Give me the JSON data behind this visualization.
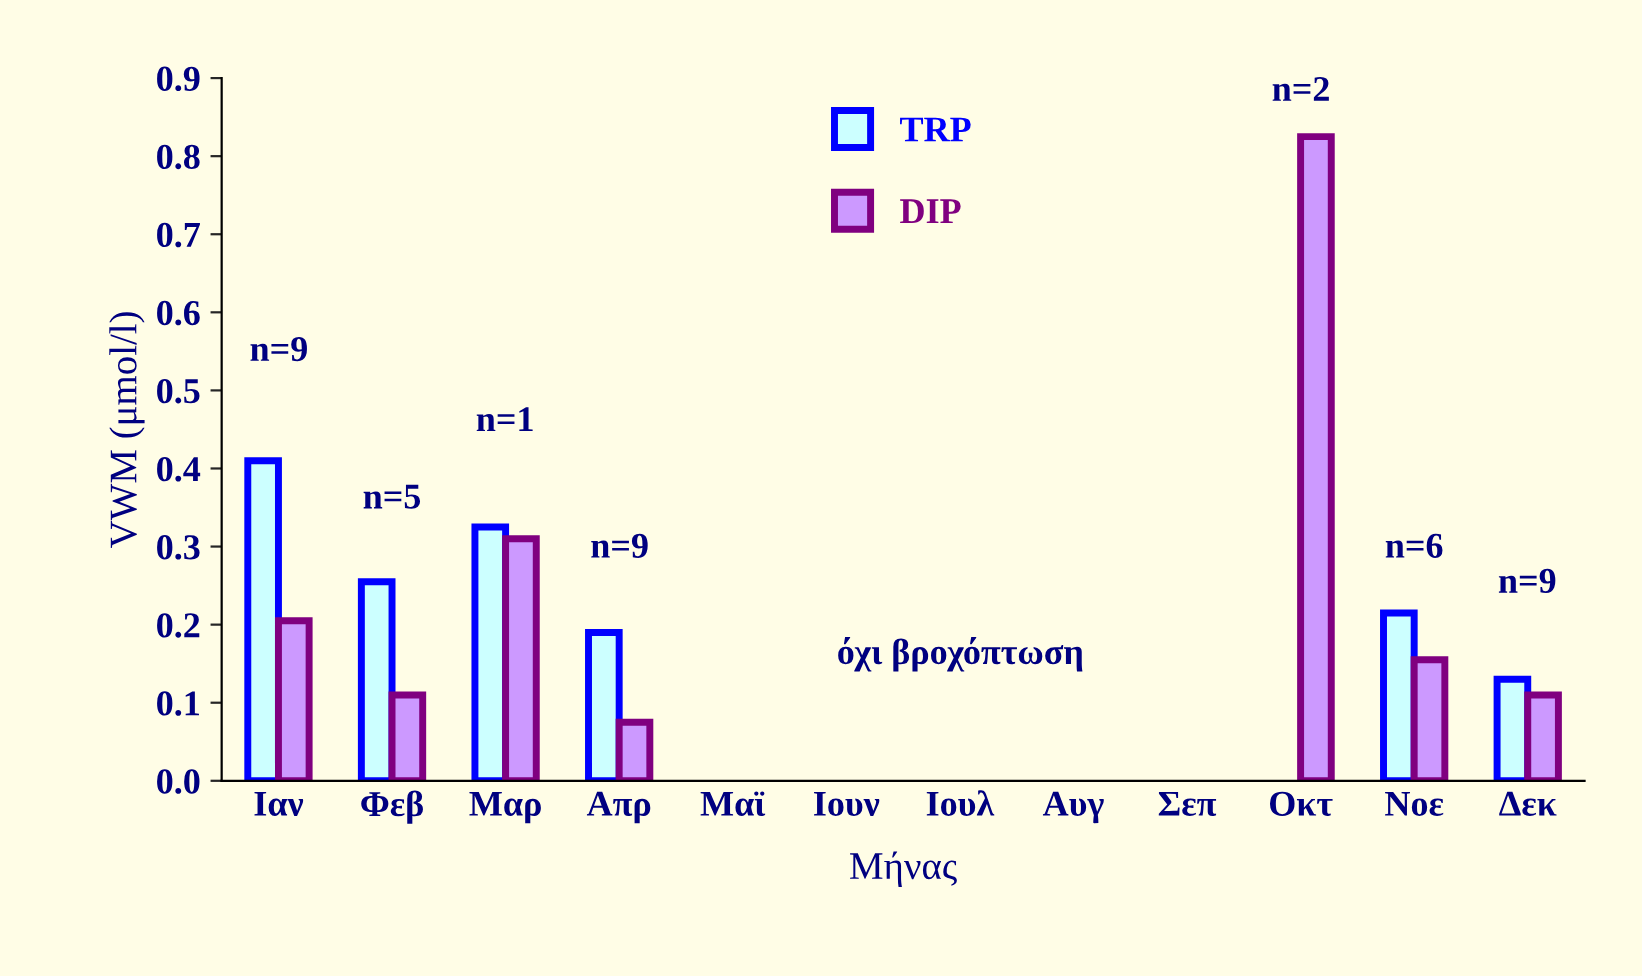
{
  "chart_data": {
    "type": "bar",
    "categories": [
      "Ιαν",
      "Φεβ",
      "Μαρ",
      "Απρ",
      "Μαϊ",
      "Ιουν",
      "Ιουλ",
      "Αυγ",
      "Σεπ",
      "Οκτ",
      "Νοε",
      "Δεκ"
    ],
    "series": [
      {
        "name": "TRP",
        "color": "#ccffff",
        "values": [
          0.41,
          0.255,
          0.325,
          0.19,
          null,
          null,
          null,
          null,
          null,
          null,
          0.215,
          0.13
        ]
      },
      {
        "name": "DIP",
        "color": "#cc99ff",
        "values": [
          0.205,
          0.11,
          0.31,
          0.075,
          null,
          null,
          null,
          null,
          null,
          0.825,
          0.155,
          0.11
        ]
      }
    ],
    "xlabel": "Μήνας",
    "ylabel": "VWM (μmol/l)",
    "ylim": [
      0,
      0.9
    ],
    "yticks": [
      {
        "value": 0,
        "label": "0.0"
      },
      0.1,
      0.2,
      0.3,
      0.4,
      0.5,
      0.6,
      0.7,
      0.8,
      0.9
    ],
    "annotations": [
      "n=9",
      "n=5",
      "n=1",
      "n=9",
      "όχι βροχόπτωση",
      "n=2",
      "n=6",
      "n=9"
    ],
    "legend": "top center",
    "grid": false
  }
}
